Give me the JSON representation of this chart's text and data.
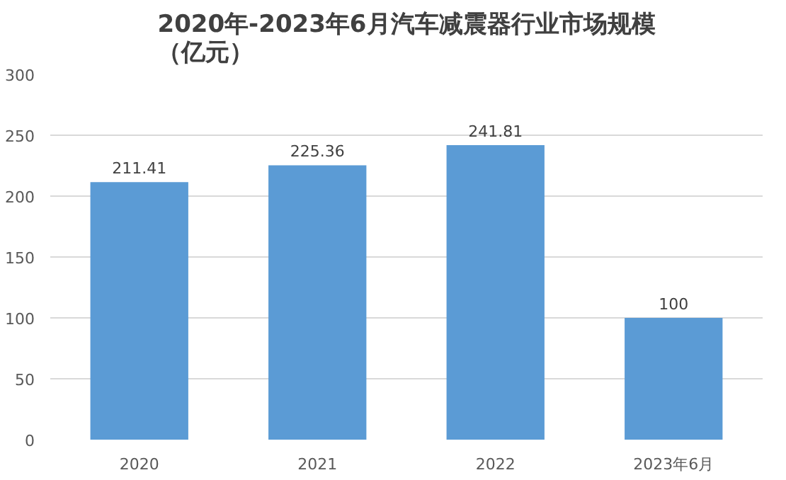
{
  "chart_data": {
    "type": "bar",
    "title": "2020年-2023年6月汽车减震器行业市场规模（亿元）",
    "categories": [
      "2020",
      "2021",
      "2022",
      "2023年6月"
    ],
    "values": [
      211.41,
      225.36,
      241.81,
      100
    ],
    "color": "#5b9bd5",
    "ylim": [
      0,
      300
    ],
    "yticks": [
      0,
      50,
      100,
      150,
      200,
      250,
      300
    ],
    "grid": "y",
    "data_labels": true
  }
}
